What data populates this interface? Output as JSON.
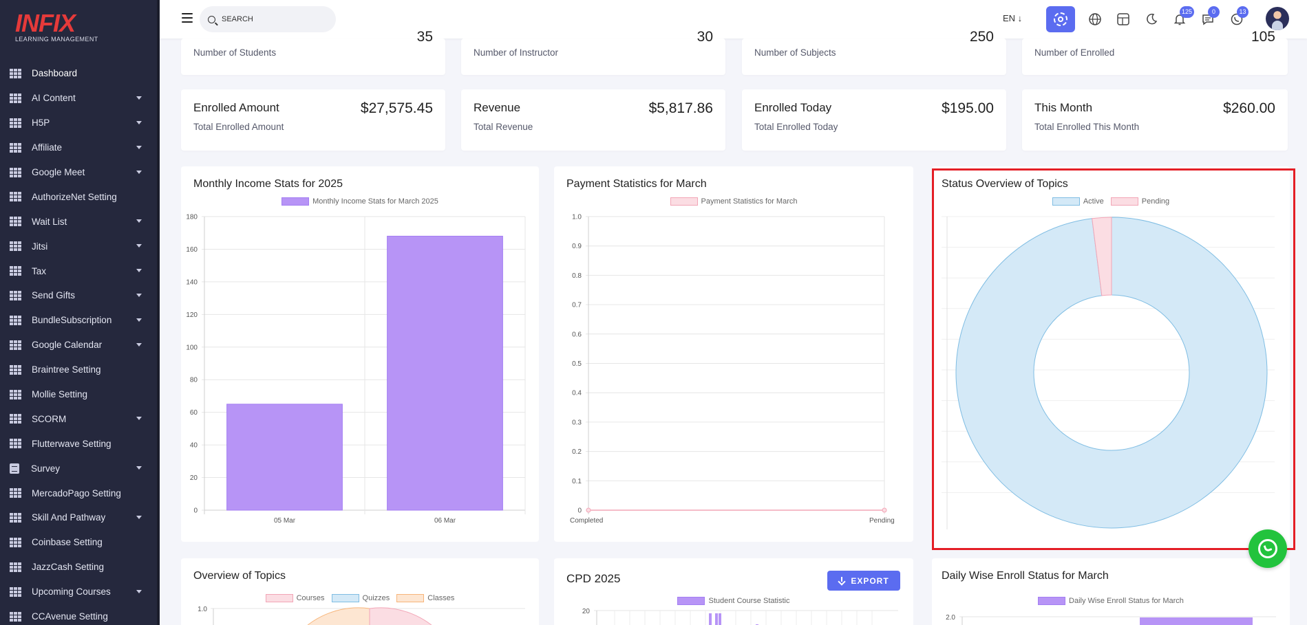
{
  "brand": {
    "name": "INFIX",
    "tagline": "LEARNING MANAGEMENT",
    "accent": "#5b6cf0",
    "logo_color": "#e53a3a"
  },
  "search": {
    "placeholder": "SEARCH"
  },
  "topbar": {
    "lang": "EN ↓",
    "badges": {
      "notifications": "125",
      "messages": "0",
      "whatsapp": "13"
    },
    "icons": [
      "menu-icon",
      "search-icon",
      "gear-icon",
      "globe-icon",
      "layout-icon",
      "moon-icon",
      "bell-icon",
      "chat-icon",
      "whatsapp-icon"
    ]
  },
  "sidebar": {
    "items": [
      {
        "label": "Dashboard",
        "caret": false
      },
      {
        "label": "AI Content",
        "caret": true
      },
      {
        "label": "H5P",
        "caret": true
      },
      {
        "label": "Affiliate",
        "caret": true
      },
      {
        "label": "Google Meet",
        "caret": true
      },
      {
        "label": "AuthorizeNet Setting",
        "caret": false
      },
      {
        "label": "Wait List",
        "caret": true
      },
      {
        "label": "Jitsi",
        "caret": true
      },
      {
        "label": "Tax",
        "caret": true
      },
      {
        "label": "Send Gifts",
        "caret": true
      },
      {
        "label": "BundleSubscription",
        "caret": true
      },
      {
        "label": "Google Calendar",
        "caret": true
      },
      {
        "label": "Braintree Setting",
        "caret": false
      },
      {
        "label": "Mollie Setting",
        "caret": false
      },
      {
        "label": "SCORM",
        "caret": true
      },
      {
        "label": "Flutterwave Setting",
        "caret": false
      },
      {
        "label": "Survey",
        "caret": true
      },
      {
        "label": "MercadoPago Setting",
        "caret": false
      },
      {
        "label": "Skill And Pathway",
        "caret": true
      },
      {
        "label": "Coinbase Setting",
        "caret": false
      },
      {
        "label": "JazzCash Setting",
        "caret": false
      },
      {
        "label": "Upcoming Courses",
        "caret": true
      },
      {
        "label": "CCAvenue Setting",
        "caret": false
      }
    ]
  },
  "top_cards": [
    {
      "sub": "Number of Students",
      "value": "35"
    },
    {
      "sub": "Number of Instructor",
      "value": "30"
    },
    {
      "sub": "Number of Subjects",
      "value": "250"
    },
    {
      "sub": "Number of Enrolled",
      "value": "105"
    }
  ],
  "amount_cards": [
    {
      "title": "Enrolled Amount",
      "sub": "Total Enrolled Amount",
      "value": "$27,575.45"
    },
    {
      "title": "Revenue",
      "sub": "Total Revenue",
      "value": "$5,817.86"
    },
    {
      "title": "Enrolled Today",
      "sub": "Total Enrolled Today",
      "value": "$195.00"
    },
    {
      "title": "This Month",
      "sub": "Total Enrolled This Month",
      "value": "$260.00"
    }
  ],
  "panels": {
    "monthly_income": {
      "title": "Monthly Income Stats for 2025"
    },
    "payment": {
      "title": "Payment Statistics for March"
    },
    "status": {
      "title": "Status Overview of Topics"
    },
    "overview": {
      "title": "Overview of Topics"
    },
    "cpd": {
      "title": "CPD 2025",
      "export": "EXPORT"
    },
    "daily": {
      "title": "Daily Wise Enroll Status for March"
    }
  },
  "chart_data": [
    {
      "type": "bar",
      "title": "Monthly Income Stats for 2025",
      "categories": [
        "05 Mar",
        "06 Mar"
      ],
      "series": [
        {
          "name": "Monthly Income Stats for March 2025",
          "values": [
            65,
            168
          ],
          "color": "#b794f6"
        }
      ],
      "ylim": [
        0,
        180
      ],
      "yticks": [
        0,
        20,
        40,
        60,
        80,
        100,
        120,
        140,
        160,
        180
      ],
      "grid": true,
      "legend": "top"
    },
    {
      "type": "line",
      "title": "Payment Statistics for March",
      "categories": [
        "Completed",
        "Pending"
      ],
      "series": [
        {
          "name": "Payment Statistics for March",
          "values": [
            0,
            0
          ],
          "color": "#f2a5b6"
        }
      ],
      "ylim": [
        0,
        1
      ],
      "yticks": [
        "0",
        "0.1",
        "0.2",
        "0.3",
        "0.4",
        "0.5",
        "0.6",
        "0.7",
        "0.8",
        "0.9",
        "1.0"
      ],
      "grid": true,
      "legend": "top"
    },
    {
      "type": "pie",
      "title": "Status Overview of Topics",
      "labels": [
        "Active",
        "Pending"
      ],
      "values": [
        98,
        2
      ],
      "colors": [
        "#d4e9f7",
        "#fbdde3"
      ],
      "legend": "top"
    },
    {
      "type": "pie",
      "title": "Overview of Topics",
      "labels": [
        "Courses",
        "Quizzes",
        "Classes"
      ],
      "yticks": [
        "1.0"
      ],
      "legend": "top"
    },
    {
      "type": "bar",
      "title": "CPD 2025",
      "series": [
        {
          "name": "Student Course Statistic"
        }
      ],
      "yticks": [
        "20"
      ],
      "legend": "top"
    },
    {
      "type": "bar",
      "title": "Daily Wise Enroll Status for March",
      "series": [
        {
          "name": "Daily Wise Enroll Status for March"
        }
      ],
      "yticks": [
        "2.0"
      ],
      "legend": "top"
    }
  ]
}
